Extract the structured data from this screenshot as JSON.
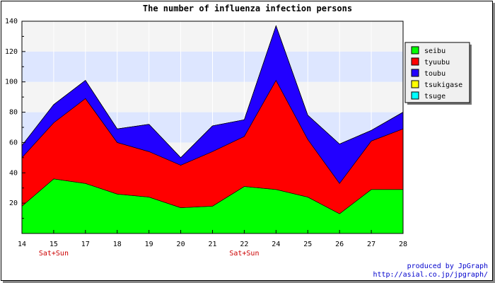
{
  "chart_data": {
    "type": "area",
    "stacked": true,
    "title": "The number of influenza infection persons",
    "x": [
      "14",
      "15",
      "17",
      "18",
      "19",
      "20",
      "21",
      "22",
      "24",
      "25",
      "26",
      "27",
      "28"
    ],
    "x_sublabels": [
      "",
      "Sat+Sun",
      "",
      "",
      "",
      "",
      "",
      "Sat+Sun",
      "",
      "",
      "",
      "",
      ""
    ],
    "ylim": [
      0,
      140
    ],
    "yticks": [
      20,
      40,
      60,
      80,
      100,
      120,
      140
    ],
    "series": [
      {
        "name": "seibu",
        "color": "#00ff00",
        "values": [
          18,
          36,
          33,
          26,
          24,
          17,
          18,
          31,
          29,
          24,
          13,
          29,
          29
        ]
      },
      {
        "name": "tyuubu",
        "color": "#ff0000",
        "values": [
          32,
          37,
          56,
          34,
          30,
          28,
          36,
          33,
          72,
          38,
          20,
          32,
          40
        ]
      },
      {
        "name": "toubu",
        "color": "#2200ff",
        "values": [
          8,
          12,
          12,
          9,
          18,
          5,
          17,
          11,
          36,
          16,
          26,
          7,
          11
        ]
      },
      {
        "name": "tsukigase",
        "color": "#ffff00",
        "values": [
          0,
          0,
          0,
          0,
          0,
          0,
          0,
          0,
          0,
          0,
          0,
          0,
          0
        ]
      },
      {
        "name": "tsuge",
        "color": "#00ffff",
        "values": [
          0,
          0,
          0,
          0,
          0,
          0,
          0,
          0,
          0,
          0,
          0,
          0,
          0
        ]
      }
    ],
    "grid": true,
    "legend_position": "top-right",
    "band_colors": [
      "#f4f4f4",
      "#dde6ff"
    ]
  },
  "credit": {
    "line1": "produced by JpGraph",
    "line2": "http://asial.co.jp/jpgraph/"
  }
}
